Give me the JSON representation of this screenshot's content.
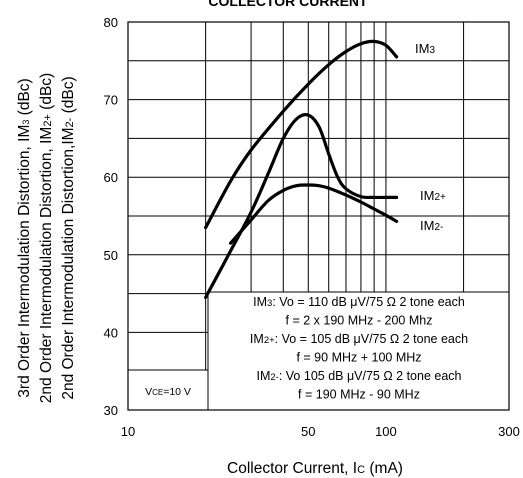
{
  "chart_data": {
    "type": "line",
    "title": "COLLECTOR CURRENT",
    "xlabel": {
      "main": "Collector Current, I",
      "sub": "C",
      "unit": " (mA)"
    },
    "ylabel": {
      "line1": {
        "a": "3rd Order Intermodulation Distortion, IM",
        "sub": "3",
        "b": " (dBc)"
      },
      "line2": {
        "a": "2nd Order Intermodulation Distortion, IM",
        "sub": "2+",
        "b": " (dBc)"
      },
      "line3": {
        "a": "2nd Order Intermodulation Distortion,IM",
        "sub": "2-",
        "b": " (dBc)"
      }
    },
    "x_scale": "log",
    "xlim": [
      10,
      300
    ],
    "ylim": [
      30,
      80
    ],
    "x_ticks": [
      {
        "value": 10,
        "label": "10"
      },
      {
        "value": 50,
        "label": "50"
      },
      {
        "value": 100,
        "label": "100"
      },
      {
        "value": 300,
        "label": "300"
      }
    ],
    "y_ticks": [
      {
        "value": 30,
        "label": "30"
      },
      {
        "value": 40,
        "label": "40"
      },
      {
        "value": 50,
        "label": "50"
      },
      {
        "value": 60,
        "label": "60"
      },
      {
        "value": 70,
        "label": "70"
      },
      {
        "value": 80,
        "label": "80"
      }
    ],
    "x_grid": [
      20,
      30,
      40,
      50,
      60,
      70,
      80,
      90,
      100,
      200
    ],
    "y_grid": [
      35,
      40,
      45,
      50,
      55,
      60,
      65,
      70,
      75
    ],
    "series": [
      {
        "name": {
          "main": "IM",
          "sub": "3"
        },
        "x": [
          20,
          25,
          30,
          40,
          50,
          60,
          70,
          80,
          90,
          100,
          110
        ],
        "y": [
          53.5,
          59.5,
          63.5,
          68.5,
          72,
          74.5,
          76.2,
          77.2,
          77.5,
          77,
          75.5
        ]
      },
      {
        "name": {
          "main": "IM",
          "sub": "2+"
        },
        "x": [
          20,
          25,
          30,
          35,
          40,
          45,
          50,
          55,
          60,
          65,
          70,
          80,
          90,
          100,
          110
        ],
        "y": [
          44.5,
          50.5,
          55.5,
          60.5,
          65,
          67.5,
          68,
          66.5,
          63,
          60,
          58.5,
          57.5,
          57.4,
          57.4,
          57.4
        ]
      },
      {
        "name": {
          "main": "IM",
          "sub": "2-"
        },
        "x": [
          25,
          30,
          35,
          40,
          45,
          50,
          55,
          60,
          70,
          80,
          90,
          100,
          110
        ],
        "y": [
          51.5,
          54.5,
          57,
          58.3,
          58.9,
          59,
          58.9,
          58.6,
          57.7,
          56.8,
          55.9,
          55.1,
          54.3
        ]
      }
    ],
    "condition_box": {
      "text": {
        "a": "V",
        "sub": "CE",
        "b": "=10 V"
      }
    },
    "legend_notes": [
      {
        "lead": "IM",
        "sub": "3",
        "rest": ": Vo = 110 dB μV/75 Ω 2 tone each"
      },
      {
        "lead": "",
        "sub": "",
        "rest": "f = 2 x 190 MHz - 200 Mhz"
      },
      {
        "lead": "IM",
        "sub": "2+",
        "rest": ": Vo = 105 dB μV/75 Ω 2 tone each"
      },
      {
        "lead": "",
        "sub": "",
        "rest": "f = 90 MHz + 100 MHz"
      },
      {
        "lead": "IM",
        "sub": "2-",
        "rest": ": Vo 105 dB μV/75 Ω 2 tone each"
      },
      {
        "lead": "",
        "sub": "",
        "rest": "f = 190 MHz - 90 MHz"
      }
    ]
  }
}
